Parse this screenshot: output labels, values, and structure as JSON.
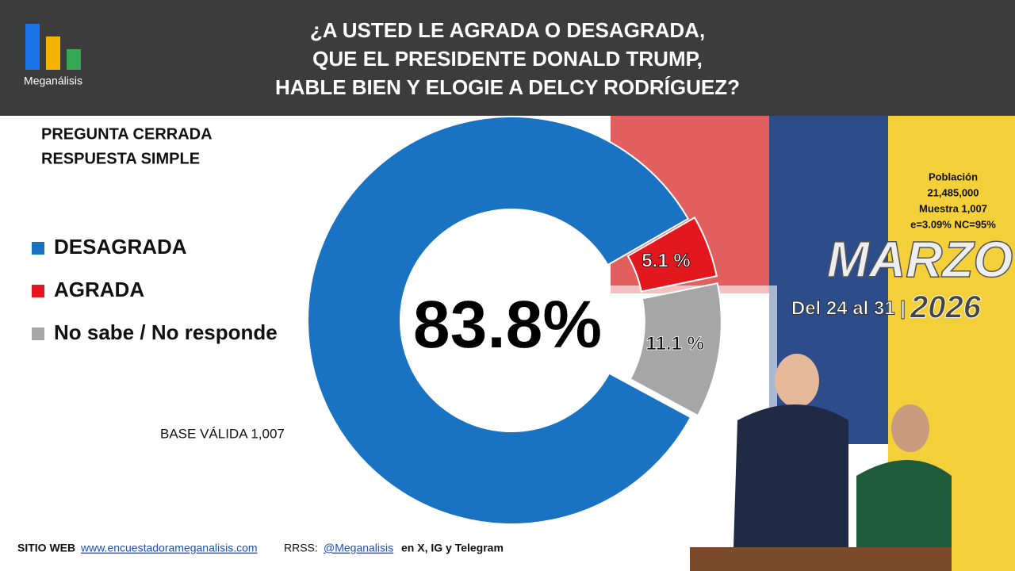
{
  "header": {
    "brand": "Meganálisis",
    "title_lines": [
      "¿A USTED LE AGRADA O DESAGRADA,",
      "QUE EL PRESIDENTE DONALD TRUMP,",
      "HABLE BIEN Y ELOGIE A DELCY RODRÍGUEZ?"
    ]
  },
  "question_type": [
    "PREGUNTA  CERRADA",
    "RESPUESTA SIMPLE"
  ],
  "base": "BASE VÁLIDA 1,007",
  "info": {
    "lines": [
      "Población",
      "21,485,000",
      "Muestra 1,007",
      "e=3.09%  NC=95%"
    ],
    "month": "MARZO",
    "date_range": "Del 24 al 31 |",
    "year": "2026"
  },
  "footer": {
    "site_label": "SITIO WEB",
    "site_link": "www.encuestadorameganalisis.com",
    "social_label": "RRSS:",
    "social_link": "@Meganalisis",
    "social_rest": "en X, IG y Telegram"
  },
  "chart_data": {
    "type": "donut",
    "categories": [
      "DESAGRADA",
      "AGRADA",
      "No sabe / No responde"
    ],
    "values": [
      83.8,
      5.1,
      11.1
    ],
    "value_labels": [
      "83.8%",
      "5.1 %",
      "11.1 %"
    ],
    "colors": [
      "#1a73c2",
      "#e3171e",
      "#a6a6a6"
    ]
  }
}
